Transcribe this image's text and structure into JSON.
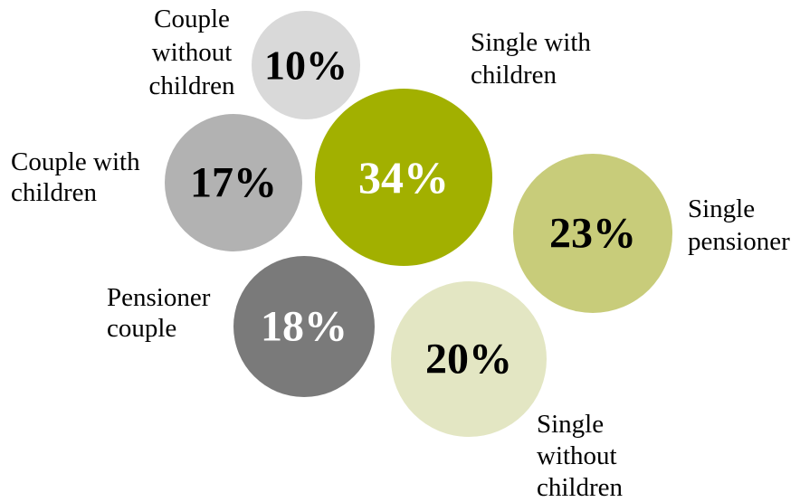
{
  "chart_data": {
    "type": "bubble",
    "title": "",
    "unit": "%",
    "series": [
      {
        "label": [
          "Couple",
          "without",
          "children"
        ],
        "value": 10,
        "value_text": "10%",
        "color": "#d9d9d9",
        "value_color": "#000000"
      },
      {
        "label": [
          "Single with",
          "children"
        ],
        "value": 34,
        "value_text": "34%",
        "color": "#a2b000",
        "value_color": "#ffffff"
      },
      {
        "label": [
          "Couple with",
          "children"
        ],
        "value": 17,
        "value_text": "17%",
        "color": "#b2b2b2",
        "value_color": "#000000"
      },
      {
        "label": [
          "Single",
          "pensioner"
        ],
        "value": 23,
        "value_text": "23%",
        "color": "#c8cc7a",
        "value_color": "#000000"
      },
      {
        "label": [
          "Pensioner",
          "couple"
        ],
        "value": 18,
        "value_text": "18%",
        "color": "#7a7a7a",
        "value_color": "#ffffff"
      },
      {
        "label": [
          "Single",
          "without",
          "children"
        ],
        "value": 20,
        "value_text": "20%",
        "color": "#e3e6c3",
        "value_color": "#000000"
      }
    ]
  }
}
